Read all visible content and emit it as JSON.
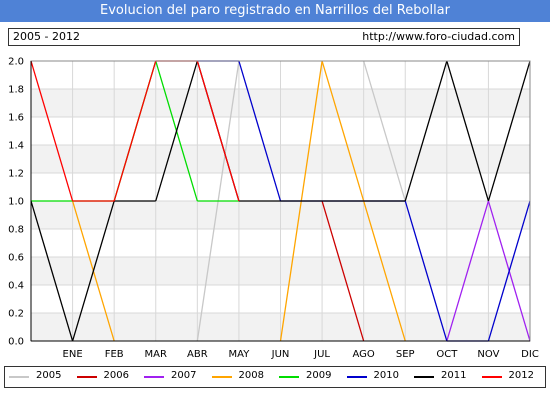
{
  "header": {
    "title": "Evolucion del paro registrado en Narrillos del Rebollar"
  },
  "info": {
    "period": "2005 - 2012",
    "url": "http://www.foro-ciudad.com"
  },
  "chart_data": {
    "type": "line",
    "title": "Evolucion del paro registrado en Narrillos del Rebollar",
    "xlabel": "",
    "ylabel": "",
    "ylim": [
      0,
      2
    ],
    "y_ticks": [
      0.0,
      0.2,
      0.4,
      0.6,
      0.8,
      1.0,
      1.2,
      1.4,
      1.6,
      1.8,
      2.0
    ],
    "y_tick_labels": [
      "0.0",
      "0.2",
      "0.4",
      "0.6",
      "0.8",
      "1.0",
      "1.2",
      "1.4",
      "1.6",
      "1.8",
      "2.0"
    ],
    "categories": [
      "",
      "ENE",
      "FEB",
      "MAR",
      "ABR",
      "MAY",
      "JUN",
      "JUL",
      "AGO",
      "SEP",
      "OCT",
      "NOV",
      "DIC"
    ],
    "grid": true,
    "legend_position": "bottom",
    "series": [
      {
        "name": "2005",
        "color": "#c8c8c8",
        "values": [
          null,
          null,
          null,
          null,
          0,
          2,
          null,
          null,
          2,
          1,
          null,
          null,
          null
        ]
      },
      {
        "name": "2006",
        "color": "#cc0000",
        "values": [
          null,
          null,
          null,
          null,
          null,
          null,
          null,
          1,
          0,
          null,
          null,
          null,
          null
        ]
      },
      {
        "name": "2007",
        "color": "#a020f0",
        "values": [
          null,
          null,
          null,
          null,
          null,
          null,
          null,
          null,
          null,
          null,
          0,
          1,
          0
        ]
      },
      {
        "name": "2008",
        "color": "#ffa500",
        "values": [
          null,
          1,
          0,
          null,
          null,
          null,
          0,
          2,
          1,
          0,
          null,
          null,
          null
        ]
      },
      {
        "name": "2009",
        "color": "#00dd00",
        "values": [
          1,
          1,
          1,
          2,
          1,
          1,
          null,
          null,
          null,
          null,
          null,
          null,
          null
        ]
      },
      {
        "name": "2010",
        "color": "#0000cc",
        "values": [
          null,
          null,
          null,
          null,
          2,
          2,
          1,
          1,
          1,
          1,
          0,
          0,
          1
        ]
      },
      {
        "name": "2011",
        "color": "#000000",
        "values": [
          1,
          0,
          1,
          1,
          2,
          1,
          1,
          1,
          1,
          1,
          2,
          1,
          2
        ]
      },
      {
        "name": "2012",
        "color": "#ff0000",
        "values": [
          2,
          1,
          1,
          2,
          2,
          1,
          null,
          null,
          null,
          null,
          null,
          null,
          null
        ]
      }
    ]
  }
}
